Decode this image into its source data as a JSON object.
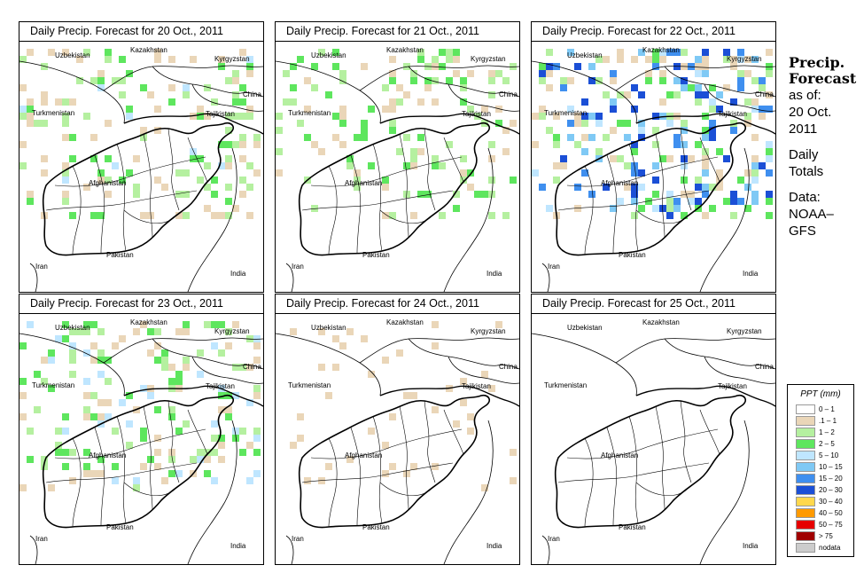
{
  "panels": [
    {
      "title": "Daily Precip. Forecast for  20 Oct., 2011",
      "intensity": 0.55
    },
    {
      "title": "Daily Precip. Forecast for  21 Oct., 2011",
      "intensity": 0.5
    },
    {
      "title": "Daily Precip. Forecast for  22 Oct., 2011",
      "intensity": 0.95
    },
    {
      "title": "Daily Precip. Forecast for  23 Oct., 2011",
      "intensity": 0.6
    },
    {
      "title": "Daily Precip. Forecast for  24 Oct., 2011",
      "intensity": 0.15
    },
    {
      "title": "Daily Precip. Forecast for  25 Oct., 2011",
      "intensity": 0.0
    }
  ],
  "map_labels": {
    "uzbekistan": "Uzbekistan",
    "kazakhstan": "Kazakhstan",
    "kyrgyzstan": "Kyrgyzstan",
    "china": "China",
    "turkmenistan": "Turkmenistan",
    "tajikistan": "Tajikistan",
    "afghanistan": "Afghanistan",
    "pakistan": "Pakistan",
    "iran": "Iran",
    "india": "India"
  },
  "sidebar": {
    "heading_line1": "Precip.",
    "heading_line2": "Forecast",
    "asof": "as of:",
    "date_line1": "20 Oct.",
    "date_line2": "2011",
    "daily": "Daily",
    "totals": "Totals",
    "data_label": "Data:",
    "source_line1": "NOAA–",
    "source_line2": "GFS"
  },
  "legend": {
    "title": "PPT (mm)",
    "entries": [
      {
        "label": "0 – 1",
        "color": "#ffffff"
      },
      {
        "label": ".1 – 1",
        "color": "#ead6b8"
      },
      {
        "label": "1 – 2",
        "color": "#b5f0a0"
      },
      {
        "label": "2 – 5",
        "color": "#5ee65e"
      },
      {
        "label": "5 – 10",
        "color": "#bfe6ff"
      },
      {
        "label": "10 – 15",
        "color": "#7fc9f5"
      },
      {
        "label": "15 – 20",
        "color": "#3f8fef"
      },
      {
        "label": "20 – 30",
        "color": "#1b4fd6"
      },
      {
        "label": "30 – 40",
        "color": "#ffd84d"
      },
      {
        "label": "40 – 50",
        "color": "#ff9a00"
      },
      {
        "label": "50 – 75",
        "color": "#e60000"
      },
      {
        "label": "> 75",
        "color": "#a00000"
      },
      {
        "label": "nodata",
        "color": "#cccccc"
      }
    ]
  }
}
